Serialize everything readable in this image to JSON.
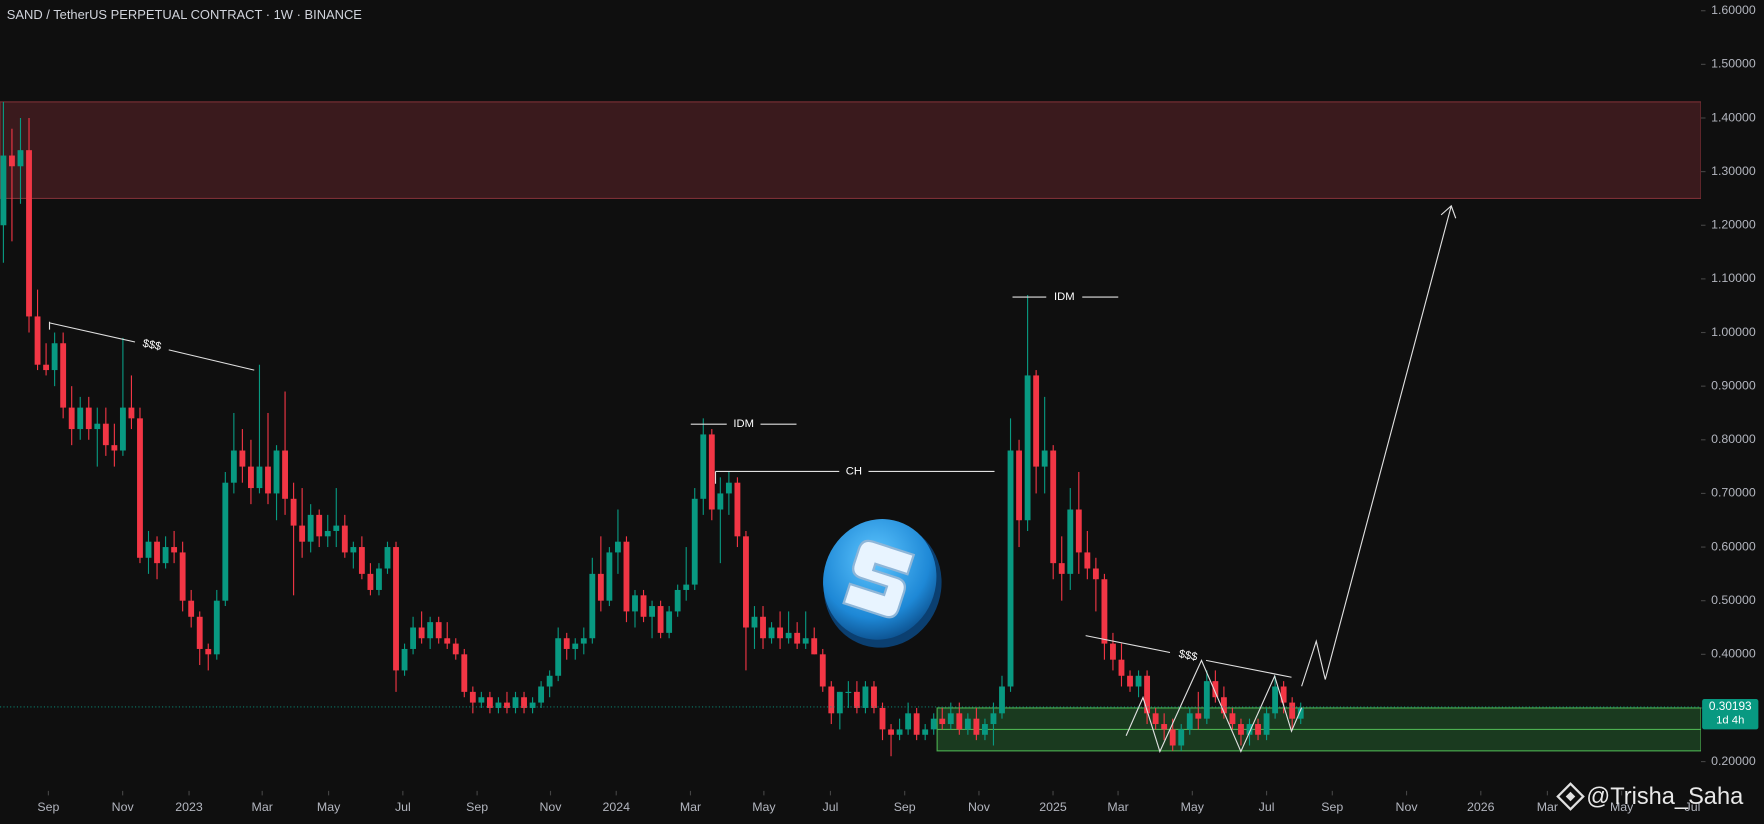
{
  "chart_data": {
    "type": "candlestick",
    "title": "SAND / TetherUS PERPETUAL CONTRACT · 1W · BINANCE",
    "up_color": "#089981",
    "down_color": "#f23645",
    "grid": false,
    "ylim": [
      0.15,
      1.62
    ],
    "yticks": [
      {
        "value": 0.2,
        "label": "0.20000"
      },
      {
        "value": 0.3,
        "label": "0.30000"
      },
      {
        "value": 0.4,
        "label": "0.40000"
      },
      {
        "value": 0.5,
        "label": "0.50000"
      },
      {
        "value": 0.6,
        "label": "0.60000"
      },
      {
        "value": 0.7,
        "label": "0.70000"
      },
      {
        "value": 0.8,
        "label": "0.80000"
      },
      {
        "value": 0.9,
        "label": "0.90000"
      },
      {
        "value": 1.0,
        "label": "1.00000"
      },
      {
        "value": 1.1,
        "label": "1.10000"
      },
      {
        "value": 1.2,
        "label": "1.20000"
      },
      {
        "value": 1.3,
        "label": "1.30000"
      },
      {
        "value": 1.4,
        "label": "1.40000"
      },
      {
        "value": 1.5,
        "label": "1.50000"
      },
      {
        "value": 1.6,
        "label": "1.60000"
      }
    ],
    "xlim": [
      -0.4,
      198.9
    ],
    "xticks": [
      {
        "value": 5.27,
        "label": "Sep"
      },
      {
        "value": 13.97,
        "label": "Nov"
      },
      {
        "value": 21.75,
        "label": "2023"
      },
      {
        "value": 30.32,
        "label": "Mar"
      },
      {
        "value": 38.1,
        "label": "May"
      },
      {
        "value": 46.8,
        "label": "Jul"
      },
      {
        "value": 55.5,
        "label": "Sep"
      },
      {
        "value": 64.1,
        "label": "Nov"
      },
      {
        "value": 71.8,
        "label": "2024"
      },
      {
        "value": 80.5,
        "label": "Mar"
      },
      {
        "value": 89.1,
        "label": "May"
      },
      {
        "value": 96.9,
        "label": "Jul"
      },
      {
        "value": 105.6,
        "label": "Sep"
      },
      {
        "value": 114.3,
        "label": "Nov"
      },
      {
        "value": 122.98,
        "label": "2025"
      },
      {
        "value": 130.6,
        "label": "Mar"
      },
      {
        "value": 139.3,
        "label": "May"
      },
      {
        "value": 148.0,
        "label": "Jul"
      },
      {
        "value": 155.7,
        "label": "Sep"
      },
      {
        "value": 164.4,
        "label": "Nov"
      },
      {
        "value": 173.1,
        "label": "2026"
      },
      {
        "value": 180.9,
        "label": "Mar"
      },
      {
        "value": 189.6,
        "label": "May"
      },
      {
        "value": 197.9,
        "label": "Jul"
      }
    ],
    "candles": [
      [
        1.2,
        1.43,
        1.13,
        1.33
      ],
      [
        1.33,
        1.38,
        1.17,
        1.31
      ],
      [
        1.31,
        1.4,
        1.24,
        1.34
      ],
      [
        1.34,
        1.4,
        1.0,
        1.03
      ],
      [
        1.03,
        1.08,
        0.93,
        0.94
      ],
      [
        0.94,
        0.98,
        0.92,
        0.93
      ],
      [
        0.93,
        1.0,
        0.9,
        0.98
      ],
      [
        0.98,
        1.0,
        0.84,
        0.86
      ],
      [
        0.86,
        0.9,
        0.79,
        0.82
      ],
      [
        0.82,
        0.88,
        0.8,
        0.86
      ],
      [
        0.86,
        0.88,
        0.8,
        0.82
      ],
      [
        0.82,
        0.86,
        0.75,
        0.83
      ],
      [
        0.83,
        0.86,
        0.77,
        0.79
      ],
      [
        0.79,
        0.83,
        0.75,
        0.78
      ],
      [
        0.78,
        0.99,
        0.77,
        0.86
      ],
      [
        0.86,
        0.92,
        0.82,
        0.84
      ],
      [
        0.84,
        0.86,
        0.57,
        0.58
      ],
      [
        0.58,
        0.63,
        0.55,
        0.61
      ],
      [
        0.61,
        0.62,
        0.54,
        0.57
      ],
      [
        0.57,
        0.62,
        0.56,
        0.6
      ],
      [
        0.6,
        0.63,
        0.57,
        0.59
      ],
      [
        0.59,
        0.61,
        0.48,
        0.5
      ],
      [
        0.5,
        0.52,
        0.45,
        0.47
      ],
      [
        0.47,
        0.48,
        0.38,
        0.41
      ],
      [
        0.41,
        0.42,
        0.37,
        0.4
      ],
      [
        0.4,
        0.52,
        0.39,
        0.5
      ],
      [
        0.5,
        0.74,
        0.49,
        0.72
      ],
      [
        0.72,
        0.85,
        0.7,
        0.78
      ],
      [
        0.78,
        0.82,
        0.72,
        0.75
      ],
      [
        0.75,
        0.8,
        0.68,
        0.71
      ],
      [
        0.71,
        0.94,
        0.7,
        0.75
      ],
      [
        0.75,
        0.85,
        0.68,
        0.7
      ],
      [
        0.7,
        0.79,
        0.65,
        0.78
      ],
      [
        0.78,
        0.89,
        0.66,
        0.69
      ],
      [
        0.69,
        0.72,
        0.51,
        0.64
      ],
      [
        0.64,
        0.71,
        0.58,
        0.61
      ],
      [
        0.61,
        0.68,
        0.59,
        0.66
      ],
      [
        0.66,
        0.67,
        0.6,
        0.62
      ],
      [
        0.62,
        0.66,
        0.6,
        0.63
      ],
      [
        0.63,
        0.71,
        0.6,
        0.64
      ],
      [
        0.64,
        0.66,
        0.58,
        0.59
      ],
      [
        0.59,
        0.61,
        0.56,
        0.6
      ],
      [
        0.6,
        0.62,
        0.54,
        0.55
      ],
      [
        0.55,
        0.57,
        0.51,
        0.52
      ],
      [
        0.52,
        0.57,
        0.51,
        0.56
      ],
      [
        0.56,
        0.61,
        0.55,
        0.6
      ],
      [
        0.6,
        0.61,
        0.33,
        0.37
      ],
      [
        0.37,
        0.42,
        0.36,
        0.41
      ],
      [
        0.41,
        0.47,
        0.4,
        0.45
      ],
      [
        0.45,
        0.48,
        0.42,
        0.43
      ],
      [
        0.43,
        0.47,
        0.41,
        0.46
      ],
      [
        0.46,
        0.47,
        0.42,
        0.43
      ],
      [
        0.43,
        0.46,
        0.41,
        0.42
      ],
      [
        0.42,
        0.43,
        0.39,
        0.4
      ],
      [
        0.4,
        0.41,
        0.32,
        0.33
      ],
      [
        0.33,
        0.34,
        0.29,
        0.31
      ],
      [
        0.31,
        0.33,
        0.3,
        0.32
      ],
      [
        0.32,
        0.33,
        0.29,
        0.3
      ],
      [
        0.3,
        0.32,
        0.29,
        0.31
      ],
      [
        0.31,
        0.33,
        0.29,
        0.3
      ],
      [
        0.3,
        0.33,
        0.29,
        0.32
      ],
      [
        0.32,
        0.33,
        0.29,
        0.3
      ],
      [
        0.3,
        0.32,
        0.29,
        0.31
      ],
      [
        0.31,
        0.35,
        0.3,
        0.34
      ],
      [
        0.34,
        0.37,
        0.32,
        0.36
      ],
      [
        0.36,
        0.45,
        0.35,
        0.43
      ],
      [
        0.43,
        0.44,
        0.39,
        0.41
      ],
      [
        0.41,
        0.43,
        0.39,
        0.42
      ],
      [
        0.42,
        0.45,
        0.4,
        0.43
      ],
      [
        0.43,
        0.58,
        0.42,
        0.55
      ],
      [
        0.55,
        0.62,
        0.48,
        0.5
      ],
      [
        0.5,
        0.6,
        0.49,
        0.59
      ],
      [
        0.59,
        0.67,
        0.55,
        0.61
      ],
      [
        0.61,
        0.62,
        0.46,
        0.48
      ],
      [
        0.48,
        0.52,
        0.45,
        0.51
      ],
      [
        0.51,
        0.52,
        0.46,
        0.47
      ],
      [
        0.47,
        0.5,
        0.43,
        0.49
      ],
      [
        0.49,
        0.5,
        0.43,
        0.44
      ],
      [
        0.44,
        0.49,
        0.43,
        0.48
      ],
      [
        0.48,
        0.53,
        0.47,
        0.52
      ],
      [
        0.52,
        0.6,
        0.5,
        0.53
      ],
      [
        0.53,
        0.71,
        0.52,
        0.69
      ],
      [
        0.69,
        0.84,
        0.66,
        0.81
      ],
      [
        0.81,
        0.82,
        0.65,
        0.67
      ],
      [
        0.67,
        0.73,
        0.57,
        0.7
      ],
      [
        0.7,
        0.74,
        0.66,
        0.72
      ],
      [
        0.72,
        0.73,
        0.6,
        0.62
      ],
      [
        0.62,
        0.63,
        0.37,
        0.45
      ],
      [
        0.45,
        0.49,
        0.41,
        0.47
      ],
      [
        0.47,
        0.49,
        0.41,
        0.43
      ],
      [
        0.43,
        0.46,
        0.42,
        0.45
      ],
      [
        0.45,
        0.48,
        0.41,
        0.43
      ],
      [
        0.43,
        0.48,
        0.42,
        0.44
      ],
      [
        0.44,
        0.46,
        0.41,
        0.42
      ],
      [
        0.42,
        0.48,
        0.41,
        0.43
      ],
      [
        0.43,
        0.45,
        0.4,
        0.4
      ],
      [
        0.4,
        0.41,
        0.33,
        0.34
      ],
      [
        0.34,
        0.35,
        0.27,
        0.29
      ],
      [
        0.29,
        0.33,
        0.26,
        0.33
      ],
      [
        0.33,
        0.35,
        0.3,
        0.33
      ],
      [
        0.33,
        0.35,
        0.29,
        0.3
      ],
      [
        0.3,
        0.35,
        0.29,
        0.34
      ],
      [
        0.34,
        0.35,
        0.29,
        0.3
      ],
      [
        0.3,
        0.31,
        0.24,
        0.26
      ],
      [
        0.26,
        0.27,
        0.21,
        0.25
      ],
      [
        0.25,
        0.28,
        0.24,
        0.26
      ],
      [
        0.26,
        0.31,
        0.25,
        0.29
      ],
      [
        0.29,
        0.3,
        0.24,
        0.25
      ],
      [
        0.25,
        0.27,
        0.24,
        0.26
      ],
      [
        0.26,
        0.29,
        0.25,
        0.28
      ],
      [
        0.28,
        0.3,
        0.26,
        0.27
      ],
      [
        0.27,
        0.31,
        0.26,
        0.29
      ],
      [
        0.29,
        0.31,
        0.25,
        0.26
      ],
      [
        0.26,
        0.29,
        0.25,
        0.28
      ],
      [
        0.28,
        0.3,
        0.24,
        0.25
      ],
      [
        0.25,
        0.28,
        0.24,
        0.27
      ],
      [
        0.27,
        0.31,
        0.23,
        0.29
      ],
      [
        0.29,
        0.36,
        0.28,
        0.34
      ],
      [
        0.34,
        0.84,
        0.33,
        0.78
      ],
      [
        0.78,
        0.8,
        0.6,
        0.65
      ],
      [
        0.65,
        1.07,
        0.63,
        0.92
      ],
      [
        0.92,
        0.93,
        0.7,
        0.75
      ],
      [
        0.75,
        0.88,
        0.7,
        0.78
      ],
      [
        0.78,
        0.79,
        0.54,
        0.57
      ],
      [
        0.57,
        0.62,
        0.5,
        0.55
      ],
      [
        0.55,
        0.71,
        0.52,
        0.67
      ],
      [
        0.67,
        0.74,
        0.55,
        0.59
      ],
      [
        0.59,
        0.63,
        0.54,
        0.56
      ],
      [
        0.56,
        0.58,
        0.48,
        0.54
      ],
      [
        0.54,
        0.55,
        0.39,
        0.42
      ],
      [
        0.42,
        0.44,
        0.37,
        0.39
      ],
      [
        0.39,
        0.42,
        0.34,
        0.36
      ],
      [
        0.36,
        0.37,
        0.33,
        0.34
      ],
      [
        0.34,
        0.37,
        0.32,
        0.36
      ],
      [
        0.36,
        0.37,
        0.27,
        0.29
      ],
      [
        0.29,
        0.3,
        0.26,
        0.27
      ],
      [
        0.27,
        0.29,
        0.24,
        0.26
      ],
      [
        0.26,
        0.28,
        0.22,
        0.23
      ],
      [
        0.23,
        0.27,
        0.22,
        0.26
      ],
      [
        0.26,
        0.3,
        0.25,
        0.29
      ],
      [
        0.29,
        0.33,
        0.26,
        0.28
      ],
      [
        0.28,
        0.37,
        0.27,
        0.35
      ],
      [
        0.35,
        0.37,
        0.31,
        0.32
      ],
      [
        0.32,
        0.34,
        0.28,
        0.29
      ],
      [
        0.29,
        0.3,
        0.26,
        0.27
      ],
      [
        0.27,
        0.28,
        0.23,
        0.25
      ],
      [
        0.25,
        0.28,
        0.23,
        0.27
      ],
      [
        0.27,
        0.28,
        0.24,
        0.25
      ],
      [
        0.25,
        0.3,
        0.24,
        0.29
      ],
      [
        0.29,
        0.36,
        0.28,
        0.34
      ],
      [
        0.34,
        0.35,
        0.29,
        0.31
      ],
      [
        0.31,
        0.32,
        0.26,
        0.28
      ],
      [
        0.28,
        0.31,
        0.27,
        0.3
      ]
    ],
    "zones": [
      {
        "from": 1.25,
        "to": 1.43,
        "color": "#3a1a1d",
        "border": "#7a2f35"
      },
      {
        "from": 0.22,
        "to": 0.3,
        "color": "#1f4a26",
        "border": "#4caf50",
        "mid": 0.26
      }
    ],
    "last_price": {
      "value": 0.30193,
      "label": "0.30193",
      "countdown": "1d 4h",
      "color": "#089981"
    },
    "annotations": [
      "$$$",
      "IDM",
      "CH",
      "IDM",
      "$$$"
    ],
    "watermark": "@Trisha_Saha"
  }
}
